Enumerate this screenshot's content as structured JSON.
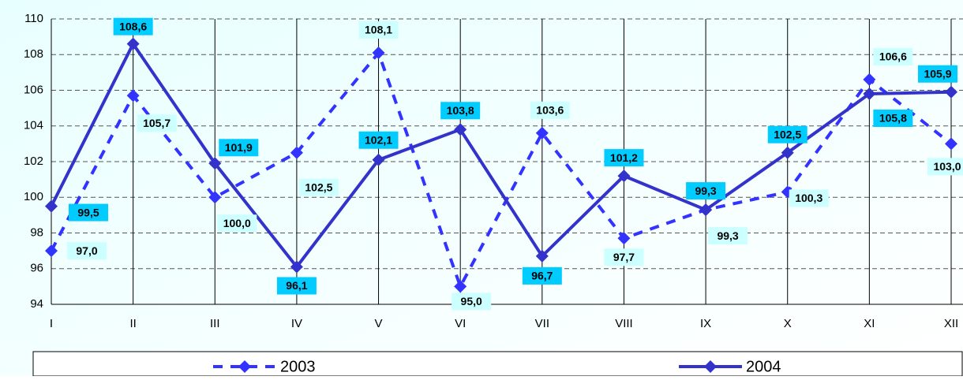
{
  "chart_data": {
    "type": "line",
    "categories": [
      "I",
      "II",
      "III",
      "IV",
      "V",
      "VI",
      "VII",
      "VIII",
      "IX",
      "X",
      "XI",
      "XII"
    ],
    "series": [
      {
        "name": "2003",
        "color": "#3333ff",
        "dashed": true,
        "values": [
          97.0,
          105.7,
          100.0,
          102.5,
          108.1,
          95.0,
          103.6,
          97.7,
          99.3,
          100.3,
          106.6,
          103.0
        ],
        "value_labels": [
          "97,0",
          "105,7",
          "100,0",
          "102,5",
          "108,1",
          "95,0",
          "103,6",
          "97,7",
          "99,3",
          "100,3",
          "106,6",
          "103,0"
        ]
      },
      {
        "name": "2004",
        "color": "#3333cc",
        "dashed": false,
        "values": [
          99.5,
          108.6,
          101.9,
          96.1,
          102.1,
          103.8,
          96.7,
          101.2,
          99.3,
          102.5,
          105.8,
          105.9
        ],
        "value_labels": [
          "99,5",
          "108,6",
          "101,9",
          "96,1",
          "102,1",
          "103,8",
          "96,7",
          "101,2",
          "99,3",
          "102,5",
          "105,8",
          "105,9"
        ]
      }
    ],
    "ylim": [
      94,
      110
    ],
    "yticks": [
      94,
      96,
      98,
      100,
      102,
      104,
      106,
      108,
      110
    ],
    "grid": true,
    "legend": "bottom"
  }
}
